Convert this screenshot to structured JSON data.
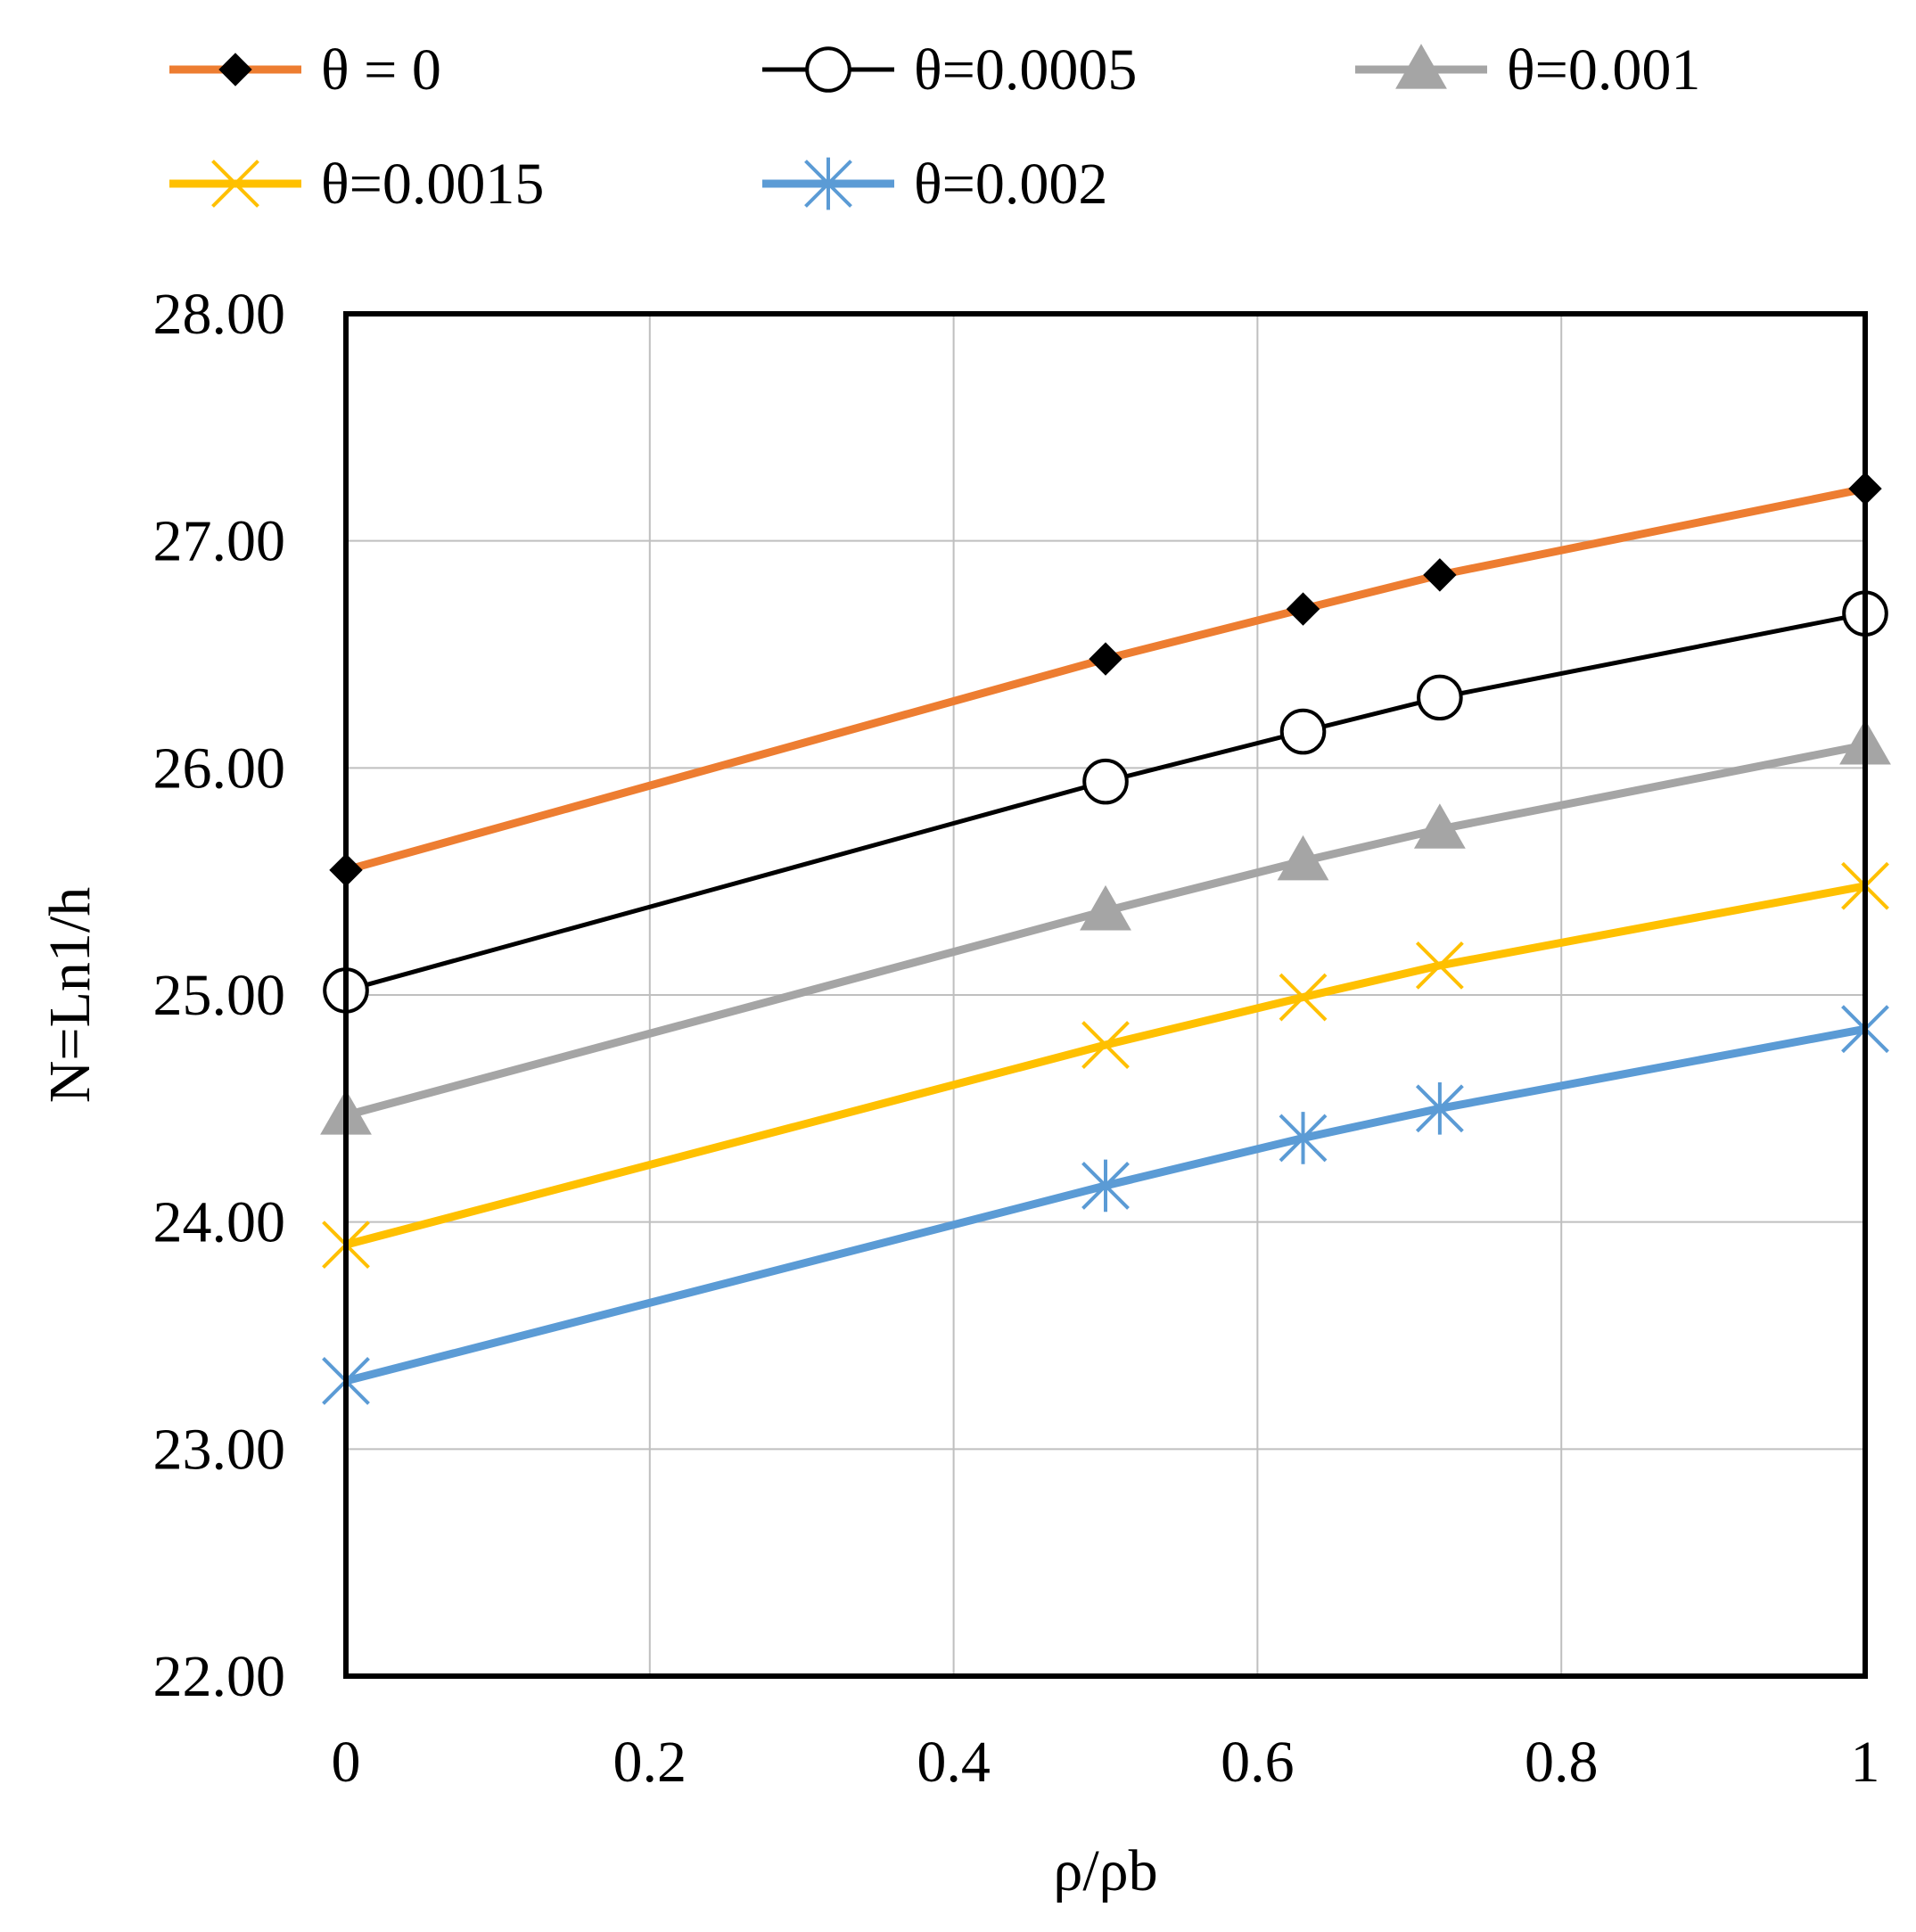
{
  "chart_data": {
    "type": "line",
    "title": "",
    "xlabel": "ρ/ρb",
    "ylabel": "N=Ln1/h",
    "xlim": [
      0,
      1
    ],
    "ylim": [
      22,
      28
    ],
    "grid": true,
    "legend_position": "top",
    "x_ticks": [
      0,
      0.2,
      0.4,
      0.6,
      0.8,
      1
    ],
    "x_tick_labels": [
      "0",
      "0.2",
      "0.4",
      "0.6",
      "0.8",
      "1"
    ],
    "y_ticks": [
      22,
      23,
      24,
      25,
      26,
      27,
      28
    ],
    "y_tick_labels": [
      "22.00",
      "23.00",
      "24.00",
      "25.00",
      "26.00",
      "27.00",
      "28.00"
    ],
    "x": [
      0,
      0.5,
      0.63,
      0.72,
      1
    ],
    "series": [
      {
        "name": "θ = 0",
        "color": "#ED7D31",
        "marker": "diamond",
        "line_width": "thick",
        "values": [
          25.55,
          26.48,
          26.7,
          26.85,
          27.23
        ]
      },
      {
        "name": "θ=0.0005",
        "color": "#000000",
        "marker": "circle",
        "line_width": "thin",
        "values": [
          25.02,
          25.94,
          26.16,
          26.31,
          26.68
        ]
      },
      {
        "name": "θ=0.001",
        "color": "#A5A5A5",
        "marker": "triangle",
        "line_width": "thick",
        "values": [
          24.47,
          25.37,
          25.59,
          25.73,
          26.1
        ]
      },
      {
        "name": "θ=0.0015",
        "color": "#FFC000",
        "marker": "x",
        "line_width": "thick",
        "values": [
          23.9,
          24.78,
          24.99,
          25.13,
          25.48
        ]
      },
      {
        "name": "θ=0.002",
        "color": "#5B9BD5",
        "marker": "asterisk",
        "line_width": "thick",
        "values": [
          23.3,
          24.16,
          24.37,
          24.5,
          24.85
        ]
      }
    ]
  }
}
